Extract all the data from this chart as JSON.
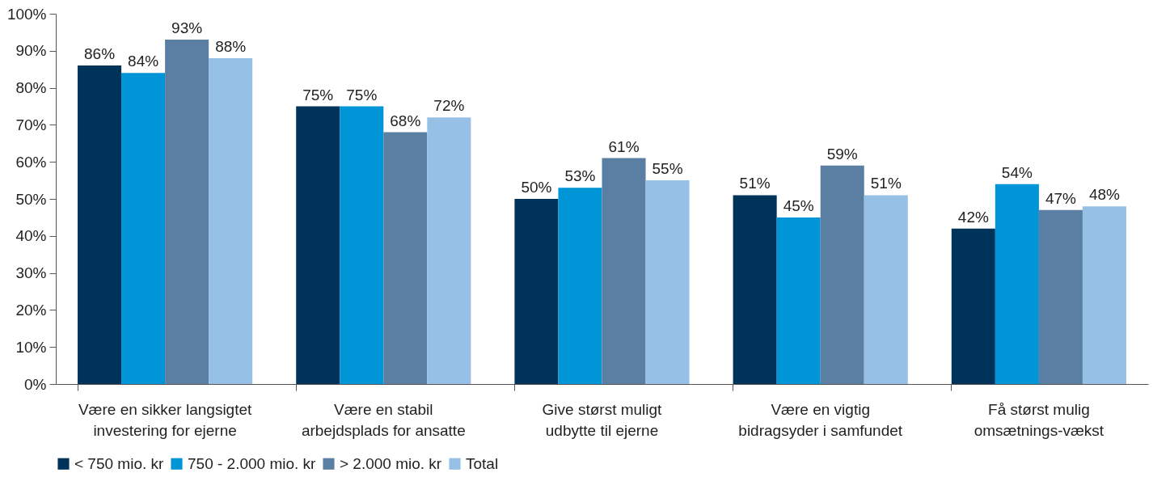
{
  "chart_data": {
    "type": "bar",
    "categories": [
      "Være en sikker langsigtet investering for ejerne",
      "Være en stabil arbejdsplads for ansatte",
      "Give størst muligt udbytte til ejerne",
      "Være en vigtig bidragsyder i samfundet",
      "Få størst mulig omsætnings-vækst"
    ],
    "series": [
      {
        "name": "< 750 mio. kr",
        "color": "#003359",
        "values": [
          86,
          75,
          50,
          51,
          42
        ],
        "value_labels": [
          "86%",
          "75%",
          "50%",
          "51%",
          "42%"
        ]
      },
      {
        "name": "750 - 2.000 mio. kr",
        "color": "#0095d6",
        "values": [
          84,
          75,
          53,
          45,
          54
        ],
        "value_labels": [
          "84%",
          "75%",
          "53%",
          "45%",
          "54%"
        ]
      },
      {
        "name": "> 2.000 mio. kr",
        "color": "#5b7fa3",
        "values": [
          93,
          68,
          61,
          59,
          47
        ],
        "value_labels": [
          "93%",
          "68%",
          "61%",
          "59%",
          "47%"
        ]
      },
      {
        "name": "Total",
        "color": "#96c0e6",
        "values": [
          88,
          72,
          55,
          51,
          48
        ],
        "value_labels": [
          "88%",
          "72%",
          "55%",
          "51%",
          "48%"
        ]
      }
    ],
    "ylim": [
      0,
      100
    ],
    "yticks": [
      {
        "value": 0,
        "label": "0%"
      },
      {
        "value": 10,
        "label": "10%"
      },
      {
        "value": 20,
        "label": "20%"
      },
      {
        "value": 30,
        "label": "30%"
      },
      {
        "value": 40,
        "label": "40%"
      },
      {
        "value": 50,
        "label": "50%"
      },
      {
        "value": 60,
        "label": "60%"
      },
      {
        "value": 70,
        "label": "70%"
      },
      {
        "value": 80,
        "label": "80%"
      },
      {
        "value": 90,
        "label": "90%"
      },
      {
        "value": 100,
        "label": "100%"
      }
    ],
    "grid": false,
    "legend": "bottom left"
  }
}
